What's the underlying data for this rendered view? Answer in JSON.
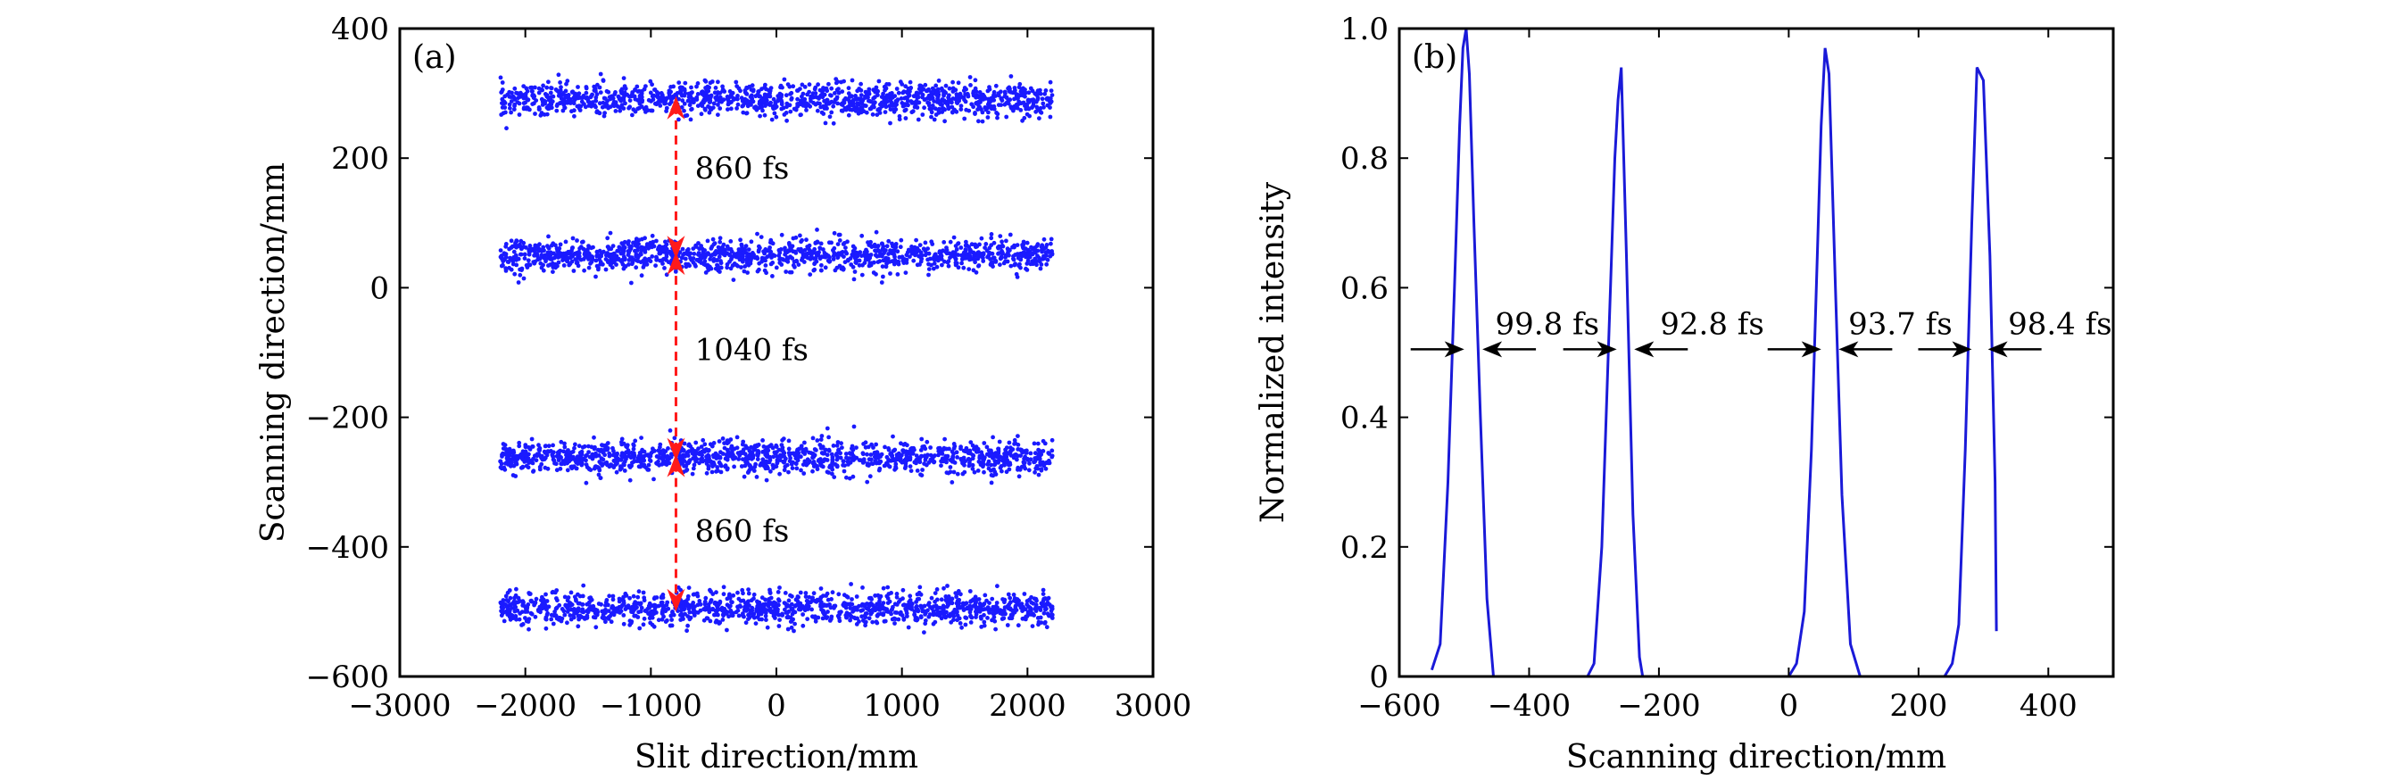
{
  "chart_data": [
    {
      "type": "scatter",
      "panel_label": "(a)",
      "xlabel": "Slit direction/mm",
      "ylabel": "Scanning direction/mm",
      "xlim": [
        -3000,
        3000
      ],
      "ylim": [
        -600,
        400
      ],
      "xticks": [
        -3000,
        -2000,
        -1000,
        0,
        1000,
        2000,
        3000
      ],
      "xtick_labels": [
        "−3000",
        "−2000",
        "−1000",
        "0",
        "1000",
        "2000",
        "3000"
      ],
      "yticks": [
        -600,
        -400,
        -200,
        0,
        200,
        400
      ],
      "ytick_labels": [
        "−600",
        "−400",
        "−200",
        "0",
        "200",
        "400"
      ],
      "point_color": "#1a1aff",
      "bands": [
        {
          "y_center": 290,
          "x_range": [
            -2200,
            2200
          ],
          "spread": 28
        },
        {
          "y_center": 50,
          "x_range": [
            -2200,
            2200
          ],
          "spread": 28
        },
        {
          "y_center": -262,
          "x_range": [
            -2200,
            2200
          ],
          "spread": 28
        },
        {
          "y_center": -495,
          "x_range": [
            -2200,
            2200
          ],
          "spread": 28
        }
      ],
      "arrows": {
        "color": "#ff1a1a",
        "x": -800,
        "items": [
          {
            "y_from": 290,
            "y_to": 50,
            "label": "860 fs",
            "label_x": -650,
            "label_y": 185
          },
          {
            "y_from": 50,
            "y_to": -262,
            "label": "1040 fs",
            "label_x": -650,
            "label_y": -95
          },
          {
            "y_from": -262,
            "y_to": -495,
            "label": "860 fs",
            "label_x": -650,
            "label_y": -375
          }
        ]
      }
    },
    {
      "type": "line",
      "panel_label": "(b)",
      "xlabel": "Scanning direction/mm",
      "ylabel": "Normalized intensity",
      "xlim": [
        -600,
        500
      ],
      "ylim": [
        0,
        1.0
      ],
      "xticks": [
        -600,
        -400,
        -200,
        0,
        200,
        400
      ],
      "xtick_labels": [
        "−600",
        "−400",
        "−200",
        "0",
        "200",
        "400"
      ],
      "yticks": [
        0,
        0.2,
        0.4,
        0.6,
        0.8,
        1.0
      ],
      "ytick_labels": [
        "0",
        "0.2",
        "0.4",
        "0.6",
        "0.8",
        "1.0"
      ],
      "line_color": "#1a1ad8",
      "x": [
        -550,
        -537,
        -525,
        -515,
        -507,
        -502,
        -497,
        -492,
        -485,
        -475,
        -465,
        -455,
        -440,
        -400,
        -350,
        -310,
        -300,
        -288,
        -278,
        -268,
        -263,
        -258,
        -250,
        -240,
        -230,
        -225,
        -150,
        -50,
        0,
        12,
        24,
        35,
        44,
        50,
        56,
        62,
        72,
        82,
        95,
        110,
        150,
        200,
        240,
        252,
        262,
        272,
        282,
        290,
        300,
        310,
        318,
        320
      ],
      "y": [
        0.01,
        0.05,
        0.3,
        0.6,
        0.85,
        0.97,
        1.0,
        0.93,
        0.7,
        0.4,
        0.12,
        0.0,
        0.0,
        0.0,
        0.0,
        0.0,
        0.02,
        0.2,
        0.5,
        0.8,
        0.89,
        0.94,
        0.65,
        0.25,
        0.03,
        0.0,
        0.0,
        0.0,
        0.0,
        0.02,
        0.1,
        0.35,
        0.65,
        0.85,
        0.97,
        0.93,
        0.6,
        0.28,
        0.05,
        0.0,
        0.0,
        0.0,
        0.0,
        0.02,
        0.08,
        0.35,
        0.7,
        0.94,
        0.92,
        0.65,
        0.3,
        0.07
      ],
      "fwhm_annotations": [
        {
          "label": "99.8 fs",
          "left_x": -500,
          "right_x": -472,
          "text_x": -372
        },
        {
          "label": "92.8 fs",
          "left_x": -265,
          "right_x": -238,
          "text_x": -118
        },
        {
          "label": "93.7 fs",
          "left_x": 50,
          "right_x": 77,
          "text_x": 172
        },
        {
          "label": "98.4 fs",
          "left_x": 282,
          "right_x": 307,
          "text_x": 418
        }
      ],
      "arrow_y": 0.505,
      "text_y": 0.545
    }
  ]
}
